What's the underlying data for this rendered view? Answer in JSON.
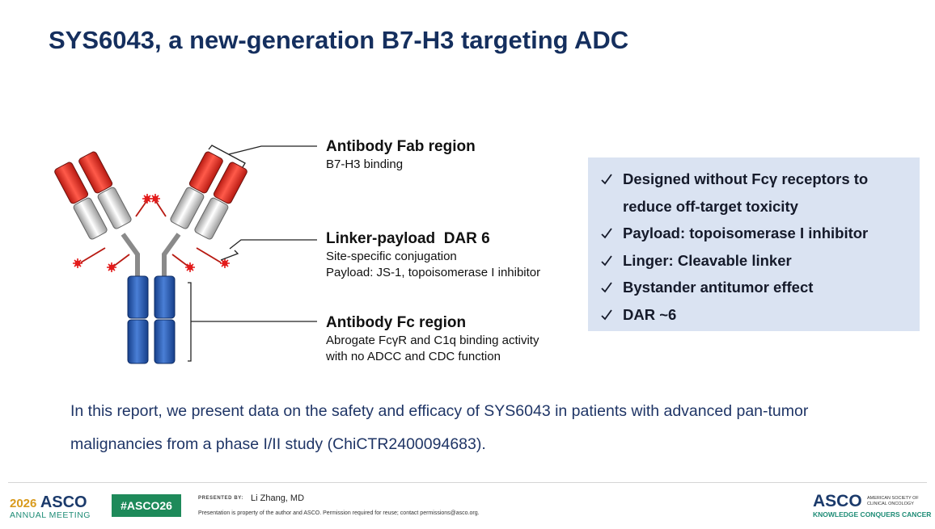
{
  "title": "SYS6043, a new-generation B7-H3 targeting ADC",
  "diagram": {
    "fab": {
      "heading": "Antibody Fab region",
      "lines": [
        "B7-H3 binding"
      ]
    },
    "linker": {
      "heading": "Linker-payload  DAR 6",
      "lines": [
        "Site-specific conjugation",
        "Payload: JS-1, topoisomerase I inhibitor"
      ]
    },
    "fc": {
      "heading": "Antibody Fc region",
      "lines": [
        "Abrogate FcγR and C1q binding activity",
        "with no ADCC and CDC function"
      ]
    }
  },
  "highlights": [
    "Designed without Fcγ receptors to reduce off-target toxicity",
    "Payload: topoisomerase I inhibitor",
    "Linger: Cleavable linker",
    "Bystander antitumor effect",
    "DAR ~6"
  ],
  "summary": "In this report, we present data on the safety and efficacy of SYS6043 in patients with advanced pan-tumor malignancies from a phase I/II study (ChiCTR2400094683).",
  "footer": {
    "year": "2026",
    "brand": "ASCO",
    "meeting": "ANNUAL MEETING",
    "hashtag": "#ASCO26",
    "presented_by": "PRESENTED BY:",
    "presenter": "Li Zhang, MD",
    "disclaimer": "Presentation is property of the author and ASCO. Permission required for reuse; contact permissions@asco.org.",
    "logo": "ASCO",
    "society": "AMERICAN SOCIETY OF CLINICAL ONCOLOGY",
    "tagline": "KNOWLEDGE CONQUERS CANCER"
  }
}
